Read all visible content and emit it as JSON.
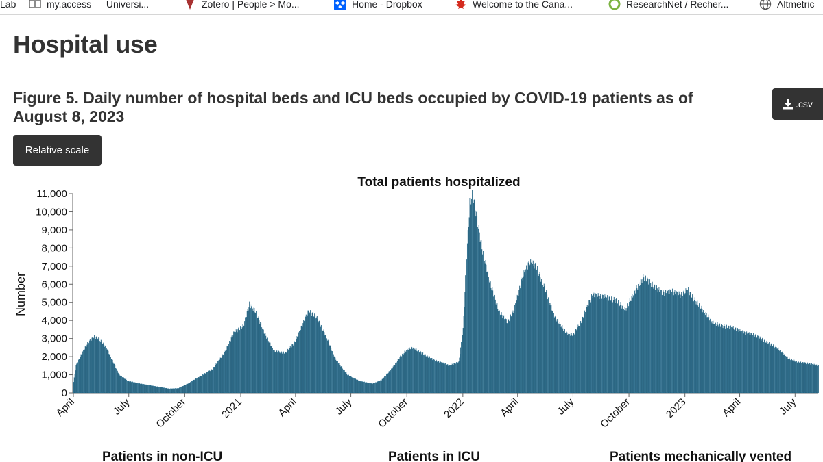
{
  "bookmarks": [
    {
      "label": "Lab",
      "icon": "none"
    },
    {
      "label": "my.access — Universi...",
      "icon": "book-icon"
    },
    {
      "label": "Zotero | People > Mo...",
      "icon": "zotero-icon"
    },
    {
      "label": "Home - Dropbox",
      "icon": "dropbox-icon"
    },
    {
      "label": "Welcome to the Cana...",
      "icon": "maple-leaf-icon"
    },
    {
      "label": "ResearchNet / Recher...",
      "icon": "researchnet-icon"
    },
    {
      "label": "Altmetric",
      "icon": "globe-icon"
    }
  ],
  "page": {
    "heading": "Hospital use",
    "figure_title": "Figure 5. Daily number of hospital beds and ICU beds occupied by COVID-19 patients as of August 8, 2023",
    "csv_button": ".csv",
    "relative_scale_button": "Relative scale",
    "sub_charts": [
      "Patients in non-ICU",
      "Patients in ICU",
      "Patients mechanically vented"
    ]
  },
  "colors": {
    "bar_fill": "#0f4a67",
    "bar_edge": "#2b7fa6",
    "button_bg": "#333333"
  },
  "chart_data": {
    "type": "bar",
    "title": "Total patients hospitalized",
    "xlabel": "",
    "ylabel": "Number",
    "ylim": [
      0,
      11000
    ],
    "yticks": [
      0,
      1000,
      2000,
      3000,
      4000,
      5000,
      6000,
      7000,
      8000,
      9000,
      10000,
      11000
    ],
    "ytick_labels": [
      "0",
      "1,000",
      "2,000",
      "3,000",
      "4,000",
      "5,000",
      "6,000",
      "7,000",
      "8,000",
      "9,000",
      "10,000",
      "11,000"
    ],
    "xticks": [
      {
        "label": "April",
        "date": "2020-04-01"
      },
      {
        "label": "July",
        "date": "2020-07-01"
      },
      {
        "label": "October",
        "date": "2020-10-01"
      },
      {
        "label": "2021",
        "date": "2021-01-01"
      },
      {
        "label": "April",
        "date": "2021-04-01"
      },
      {
        "label": "July",
        "date": "2021-07-01"
      },
      {
        "label": "October",
        "date": "2021-10-01"
      },
      {
        "label": "2022",
        "date": "2022-01-01"
      },
      {
        "label": "April",
        "date": "2022-04-01"
      },
      {
        "label": "July",
        "date": "2022-07-01"
      },
      {
        "label": "October",
        "date": "2022-10-01"
      },
      {
        "label": "2023",
        "date": "2023-01-01"
      },
      {
        "label": "April",
        "date": "2023-04-01"
      },
      {
        "label": "July",
        "date": "2023-07-01"
      }
    ],
    "x_range": [
      "2020-04-01",
      "2023-08-08"
    ],
    "series": [
      {
        "name": "Total patients hospitalized",
        "points": [
          [
            "2020-04-01",
            600
          ],
          [
            "2020-04-05",
            1500
          ],
          [
            "2020-04-15",
            2200
          ],
          [
            "2020-04-25",
            2800
          ],
          [
            "2020-05-05",
            3100
          ],
          [
            "2020-05-12",
            3000
          ],
          [
            "2020-05-25",
            2500
          ],
          [
            "2020-06-05",
            1700
          ],
          [
            "2020-06-15",
            1000
          ],
          [
            "2020-06-30",
            650
          ],
          [
            "2020-07-20",
            500
          ],
          [
            "2020-08-15",
            350
          ],
          [
            "2020-09-05",
            230
          ],
          [
            "2020-09-20",
            250
          ],
          [
            "2020-10-05",
            500
          ],
          [
            "2020-10-25",
            900
          ],
          [
            "2020-11-15",
            1300
          ],
          [
            "2020-12-05",
            2200
          ],
          [
            "2020-12-20",
            3300
          ],
          [
            "2021-01-05",
            3700
          ],
          [
            "2021-01-15",
            4900
          ],
          [
            "2021-01-25",
            4500
          ],
          [
            "2021-02-10",
            3200
          ],
          [
            "2021-02-25",
            2300
          ],
          [
            "2021-03-15",
            2200
          ],
          [
            "2021-03-31",
            2800
          ],
          [
            "2021-04-15",
            4000
          ],
          [
            "2021-04-22",
            4500
          ],
          [
            "2021-05-05",
            4200
          ],
          [
            "2021-05-20",
            3200
          ],
          [
            "2021-06-05",
            1900
          ],
          [
            "2021-06-25",
            1000
          ],
          [
            "2021-07-15",
            650
          ],
          [
            "2021-08-05",
            500
          ],
          [
            "2021-08-20",
            700
          ],
          [
            "2021-09-05",
            1300
          ],
          [
            "2021-09-20",
            2000
          ],
          [
            "2021-10-01",
            2400
          ],
          [
            "2021-10-10",
            2500
          ],
          [
            "2021-10-25",
            2200
          ],
          [
            "2021-11-15",
            1800
          ],
          [
            "2021-12-10",
            1500
          ],
          [
            "2021-12-25",
            1700
          ],
          [
            "2022-01-01",
            3500
          ],
          [
            "2022-01-06",
            7000
          ],
          [
            "2022-01-12",
            10500
          ],
          [
            "2022-01-17",
            11000
          ],
          [
            "2022-02-01",
            8000
          ],
          [
            "2022-02-15",
            6000
          ],
          [
            "2022-03-01",
            4500
          ],
          [
            "2022-03-15",
            3900
          ],
          [
            "2022-03-25",
            4500
          ],
          [
            "2022-04-10",
            6500
          ],
          [
            "2022-04-20",
            7200
          ],
          [
            "2022-05-01",
            7000
          ],
          [
            "2022-05-15",
            5800
          ],
          [
            "2022-06-01",
            4200
          ],
          [
            "2022-06-20",
            3300
          ],
          [
            "2022-07-01",
            3200
          ],
          [
            "2022-07-15",
            4000
          ],
          [
            "2022-08-01",
            5400
          ],
          [
            "2022-08-20",
            5300
          ],
          [
            "2022-09-10",
            5100
          ],
          [
            "2022-09-25",
            4600
          ],
          [
            "2022-10-10",
            5600
          ],
          [
            "2022-10-25",
            6400
          ],
          [
            "2022-11-10",
            5900
          ],
          [
            "2022-11-25",
            5500
          ],
          [
            "2022-12-10",
            5600
          ],
          [
            "2022-12-25",
            5400
          ],
          [
            "2023-01-05",
            5700
          ],
          [
            "2023-01-15",
            5200
          ],
          [
            "2023-02-01",
            4500
          ],
          [
            "2023-02-15",
            3900
          ],
          [
            "2023-03-01",
            3700
          ],
          [
            "2023-03-20",
            3600
          ],
          [
            "2023-04-10",
            3300
          ],
          [
            "2023-04-25",
            3200
          ],
          [
            "2023-05-15",
            2800
          ],
          [
            "2023-06-01",
            2500
          ],
          [
            "2023-06-20",
            1900
          ],
          [
            "2023-07-05",
            1700
          ],
          [
            "2023-07-25",
            1600
          ],
          [
            "2023-08-08",
            1500
          ]
        ]
      }
    ]
  }
}
